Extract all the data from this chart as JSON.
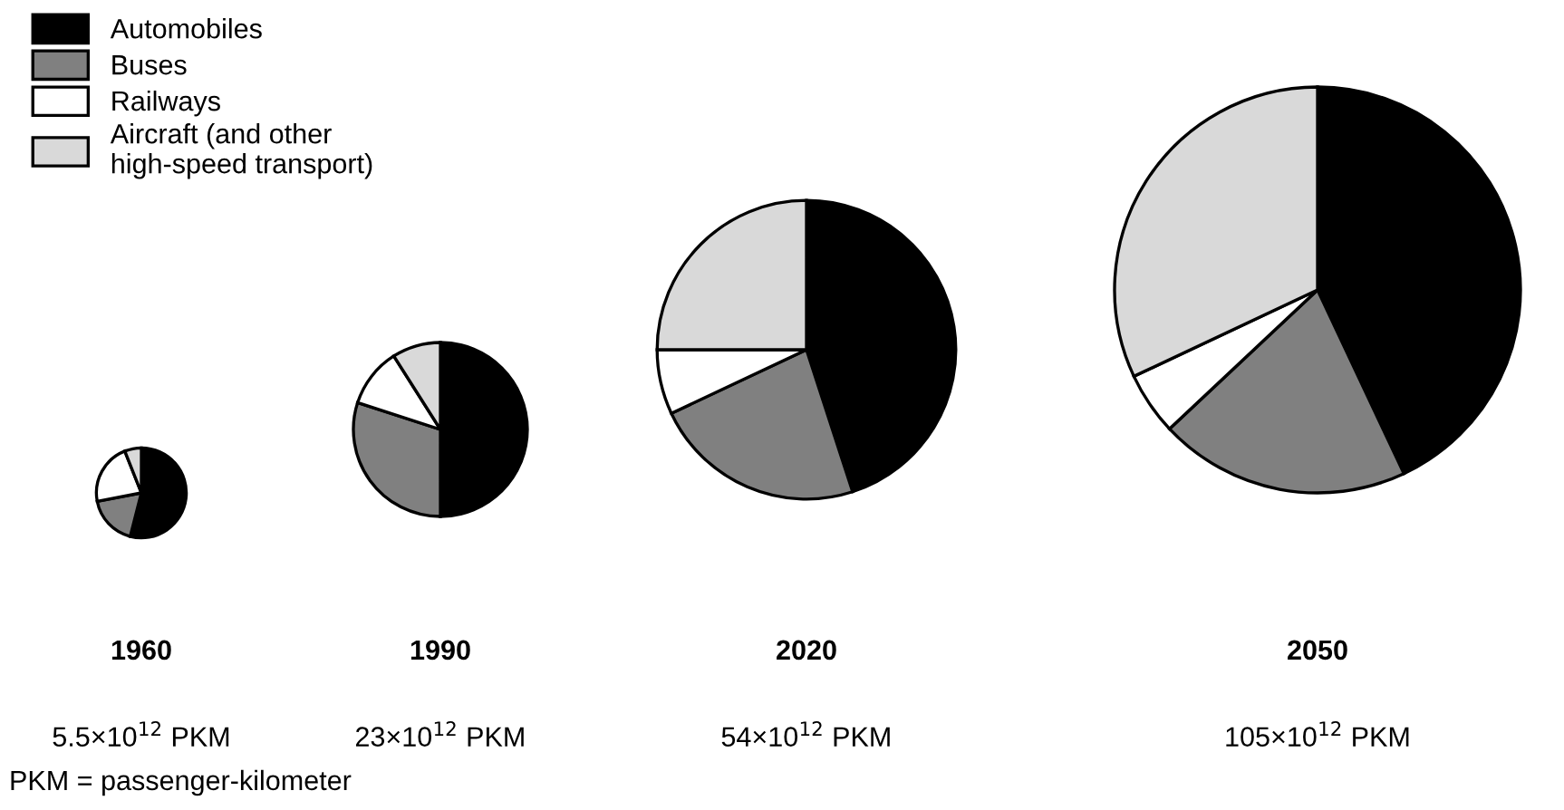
{
  "chart_data": [
    {
      "type": "pie",
      "title": "1960",
      "subtitle": "5.5×10$^{12}$ PKM",
      "categories": [
        "Automobiles",
        "Buses",
        "Railways",
        "Aircraft (and other\nhigh-speed transport)"
      ],
      "values": [
        54,
        18,
        22,
        6
      ],
      "colors": [
        "#000000",
        "#808080",
        "#ffffff",
        "#d9d9d9"
      ],
      "legend": "top right"
    },
    {
      "type": "pie",
      "title": "1990",
      "subtitle": "23×10$^{12}$ PKM",
      "values": [
        50,
        30,
        11,
        9
      ],
      "colors": [
        "#000000",
        "#808080",
        "#ffffff",
        "#d9d9d9"
      ]
    },
    {
      "type": "pie",
      "title": "2020",
      "subtitle": "54×10$^{12}$ PKM",
      "values": [
        45,
        23,
        7,
        25
      ],
      "colors": [
        "#000000",
        "#808080",
        "#ffffff",
        "#d9d9d9"
      ]
    },
    {
      "type": "pie",
      "title": "2050",
      "subtitle": "105×10$^{12}$ PKM",
      "values": [
        43,
        20,
        5,
        32
      ],
      "colors": [
        "#000000",
        "#808080",
        "#ffffff",
        "#d9d9d9"
      ],
      "annotations": [
        "PKM = passenger-kilometer"
      ]
    }
  ]
}
